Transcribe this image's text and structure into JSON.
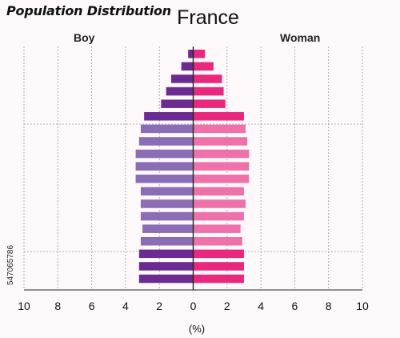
{
  "header": {
    "subtitle": "Population Distribution",
    "title": "France",
    "left_label": "Boy",
    "right_label": "Woman",
    "side_code": "547065786"
  },
  "colors": {
    "boy_dark": "#6a2c91",
    "boy_light": "#8a6db4",
    "woman_dark": "#e8287d",
    "woman_light": "#ee72a9",
    "axis": "#222222",
    "grid": "#9a9a9a"
  },
  "chart_data": {
    "type": "bar",
    "orientation": "horizontal-pyramid",
    "xlabel": "(%)",
    "xlim": [
      -10,
      10
    ],
    "xticks": [
      -10,
      -8,
      -6,
      -4,
      -2,
      0,
      2,
      4,
      6,
      8,
      10
    ],
    "xtick_labels": [
      "10",
      "8",
      "6",
      "4",
      "2",
      "0",
      "2",
      "4",
      "6",
      "8",
      "10"
    ],
    "grid": "vertical dashed",
    "series": [
      {
        "name": "Boy",
        "side": "left",
        "values": [
          0.3,
          0.7,
          1.3,
          1.6,
          1.9,
          2.9,
          3.1,
          3.2,
          3.4,
          3.4,
          3.4,
          3.1,
          3.1,
          3.1,
          3.0,
          3.1,
          3.2,
          3.2,
          3.2
        ]
      },
      {
        "name": "Woman",
        "side": "right",
        "values": [
          0.7,
          1.2,
          1.7,
          1.8,
          1.9,
          3.0,
          3.1,
          3.2,
          3.3,
          3.3,
          3.3,
          3.0,
          3.1,
          3.0,
          2.8,
          2.9,
          3.0,
          3.0,
          3.0
        ]
      }
    ]
  }
}
